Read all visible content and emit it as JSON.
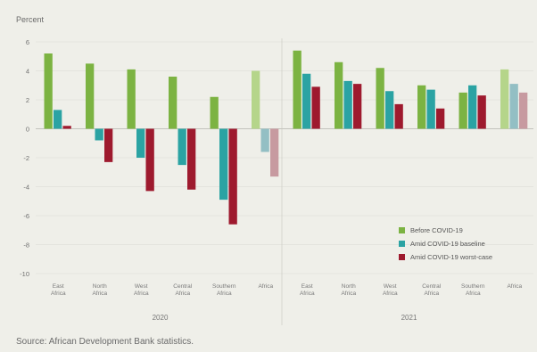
{
  "chart_data": {
    "type": "bar",
    "ylabel": "Percent",
    "ylim": [
      -10,
      6
    ],
    "yticks": [
      6,
      4,
      2,
      0,
      -2,
      -4,
      -6,
      -8,
      -10
    ],
    "groups": [
      {
        "label": "2020",
        "categories": [
          "East\nAfrica",
          "North\nAfrica",
          "West\nAfrica",
          "Central\nAfrica",
          "Southern\nAfrica",
          "Africa"
        ],
        "series": [
          {
            "name": "Before COVID-19",
            "values": [
              5.2,
              4.5,
              4.1,
              3.6,
              2.2,
              4.0
            ]
          },
          {
            "name": "Amid COVID-19 baseline",
            "values": [
              1.3,
              -0.8,
              -2.0,
              -2.5,
              -4.9,
              -1.6
            ]
          },
          {
            "name": "Amid COVID-19 worst-case",
            "values": [
              0.2,
              -2.3,
              -4.3,
              -4.2,
              -6.6,
              -3.3
            ]
          }
        ]
      },
      {
        "label": "2021",
        "categories": [
          "East\nAfrica",
          "North\nAfrica",
          "West\nAfrica",
          "Central\nAfrica",
          "Southern\nAfrica",
          "Africa"
        ],
        "series": [
          {
            "name": "Before COVID-19",
            "values": [
              5.4,
              4.6,
              4.2,
              3.0,
              2.5,
              4.1
            ]
          },
          {
            "name": "Amid COVID-19 baseline",
            "values": [
              3.8,
              3.3,
              2.6,
              2.7,
              3.0,
              3.1
            ]
          },
          {
            "name": "Amid COVID-19 worst-case",
            "values": [
              2.9,
              3.1,
              1.7,
              1.4,
              2.3,
              2.5
            ]
          }
        ]
      }
    ],
    "legend": [
      {
        "name": "Before COVID-19",
        "color": "#7cb342"
      },
      {
        "name": "Amid COVID-19 baseline",
        "color": "#2ba3a3"
      },
      {
        "name": "Amid COVID-19 worst-case",
        "color": "#9e1a2e"
      }
    ],
    "africa_colors": [
      "#b5d58a",
      "#93bfc4",
      "#c79aa0"
    ],
    "source": "Source: African Development Bank statistics."
  }
}
